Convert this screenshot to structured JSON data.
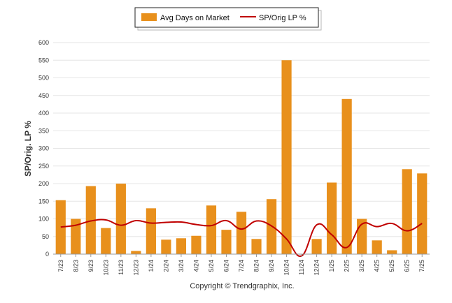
{
  "chart_data": {
    "type": "bar",
    "title": "",
    "xlabel": "",
    "ylabel": "SP/Orig. LP %",
    "ylim": [
      0,
      600
    ],
    "yticks": [
      0,
      50,
      100,
      150,
      200,
      250,
      300,
      350,
      400,
      450,
      500,
      550,
      600
    ],
    "grid": true,
    "legend_position": "top-center",
    "categories": [
      "7/23",
      "8/23",
      "9/23",
      "10/23",
      "11/23",
      "12/23",
      "1/24",
      "2/24",
      "3/24",
      "4/24",
      "5/24",
      "6/24",
      "7/24",
      "8/24",
      "9/24",
      "10/24",
      "11/24",
      "12/24",
      "1/25",
      "2/25",
      "3/25",
      "4/25",
      "5/25",
      "6/25",
      "7/25"
    ],
    "series": [
      {
        "name": "Avg Days on Market",
        "type": "bar",
        "color": "#E8901C",
        "values": [
          153,
          100,
          193,
          74,
          200,
          9,
          130,
          41,
          45,
          52,
          138,
          69,
          120,
          43,
          156,
          550,
          0,
          43,
          203,
          440,
          100,
          39,
          11,
          241,
          229
        ]
      },
      {
        "name": "SP/Orig LP %",
        "type": "line",
        "color": "#C00000",
        "values": [
          77,
          82,
          94,
          97,
          82,
          95,
          88,
          90,
          91,
          84,
          81,
          95,
          71,
          94,
          80,
          43,
          -5,
          83,
          55,
          19,
          85,
          78,
          87,
          66,
          87
        ]
      }
    ]
  },
  "footer": {
    "credit": "Copyright © Trendgraphix, Inc."
  }
}
